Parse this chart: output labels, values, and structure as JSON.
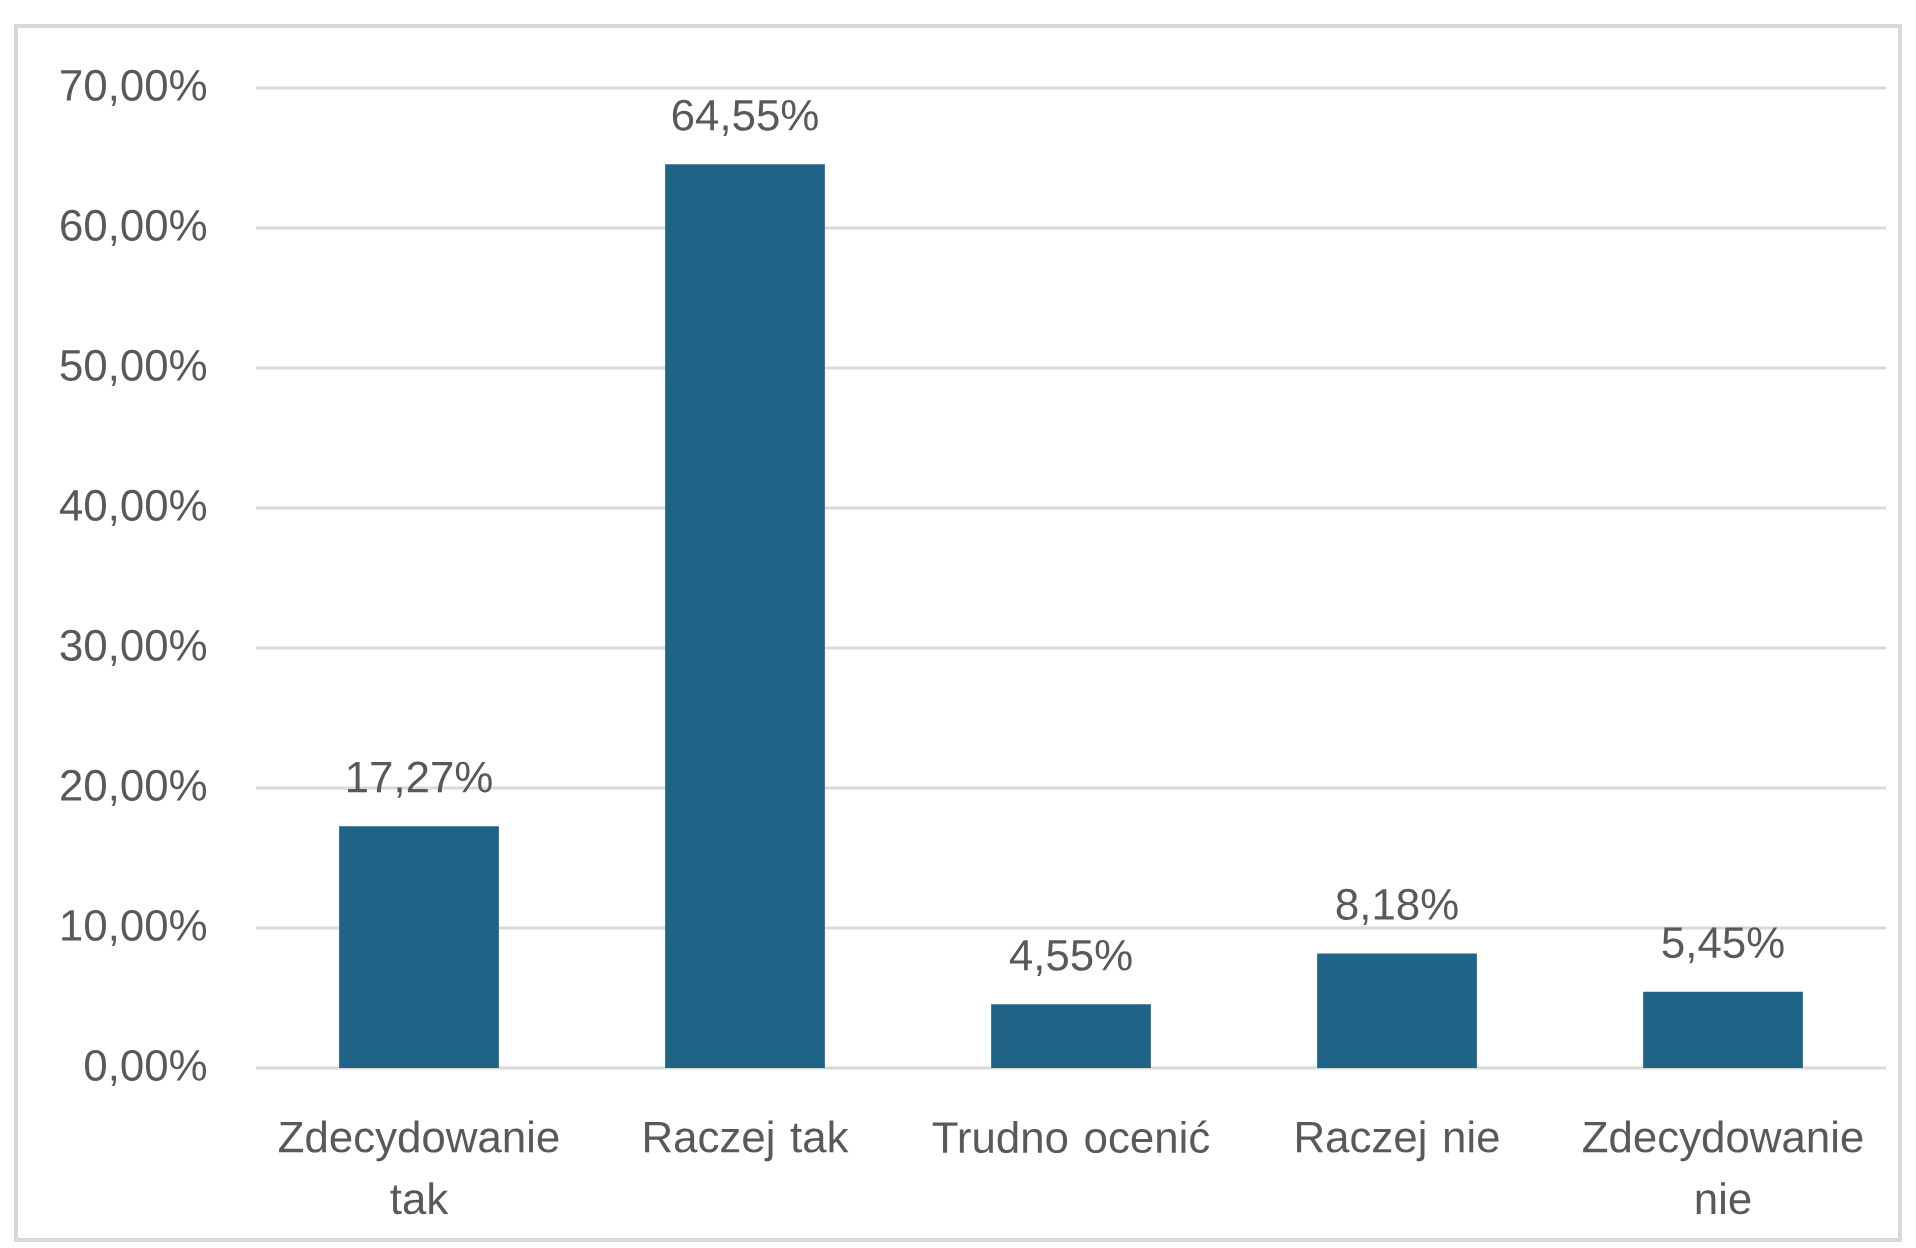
{
  "chart_data": {
    "type": "bar",
    "categories": [
      "Zdecydowanie tak",
      "Raczej tak",
      "Trudno ocenić",
      "Raczej nie",
      "Zdecydowanie nie"
    ],
    "values": [
      17.27,
      64.55,
      4.55,
      8.18,
      5.45
    ],
    "value_labels": [
      "17,27%",
      "64,55%",
      "4,55%",
      "8,18%",
      "5,45%"
    ],
    "color": "#1f6387",
    "ylim": [
      0,
      70
    ],
    "yticks": [
      {
        "value": 0,
        "label": "0,00%"
      },
      {
        "value": 10,
        "label": "10,00%"
      },
      {
        "value": 20,
        "label": "20,00%"
      },
      {
        "value": 30,
        "label": "30,00%"
      },
      {
        "value": 40,
        "label": "40,00%"
      },
      {
        "value": 50,
        "label": "50,00%"
      },
      {
        "value": 60,
        "label": "60,00%"
      },
      {
        "value": 70,
        "label": "70,00%"
      }
    ],
    "grid": "y"
  }
}
